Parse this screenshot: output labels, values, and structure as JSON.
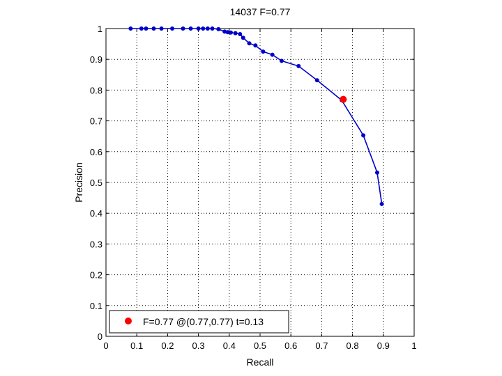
{
  "chart_data": {
    "type": "line",
    "title": "14037 F=0.77",
    "xlabel": "Recall",
    "ylabel": "Precision",
    "xlim": [
      0,
      1
    ],
    "ylim": [
      0,
      1
    ],
    "xticks": [
      0,
      0.1,
      0.2,
      0.3,
      0.4,
      0.5,
      0.6,
      0.7,
      0.8,
      0.9,
      1
    ],
    "yticks": [
      0,
      0.1,
      0.2,
      0.3,
      0.4,
      0.5,
      0.6,
      0.7,
      0.8,
      0.9,
      1
    ],
    "xtick_labels": [
      "0",
      "0.1",
      "0.2",
      "0.3",
      "0.4",
      "0.5",
      "0.6",
      "0.7",
      "0.8",
      "0.9",
      "1"
    ],
    "ytick_labels": [
      "0",
      "0.1",
      "0.2",
      "0.3",
      "0.4",
      "0.5",
      "0.6",
      "0.7",
      "0.8",
      "0.9",
      "1"
    ],
    "grid": true,
    "legend_position": "bottom-left",
    "series": [
      {
        "color": "#0000cc",
        "x": [
          0.08,
          0.115,
          0.13,
          0.155,
          0.18,
          0.215,
          0.25,
          0.275,
          0.3,
          0.315,
          0.33,
          0.345,
          0.365,
          0.385,
          0.395,
          0.405,
          0.42,
          0.435,
          0.445,
          0.465,
          0.485,
          0.51,
          0.54,
          0.57,
          0.625,
          0.685,
          0.765,
          0.835,
          0.88,
          0.895
        ],
        "y": [
          1.0,
          1.0,
          1.0,
          1.0,
          1.0,
          1.0,
          1.0,
          1.0,
          1.0,
          1.0,
          1.0,
          1.0,
          0.998,
          0.99,
          0.988,
          0.987,
          0.985,
          0.982,
          0.97,
          0.952,
          0.945,
          0.925,
          0.915,
          0.895,
          0.878,
          0.832,
          0.767,
          0.653,
          0.532,
          0.43
        ]
      }
    ],
    "highlight": {
      "x": 0.77,
      "y": 0.77,
      "color": "#ff0000"
    },
    "legend_text": "F=0.77 @(0.77,0.77) t=0.13"
  }
}
